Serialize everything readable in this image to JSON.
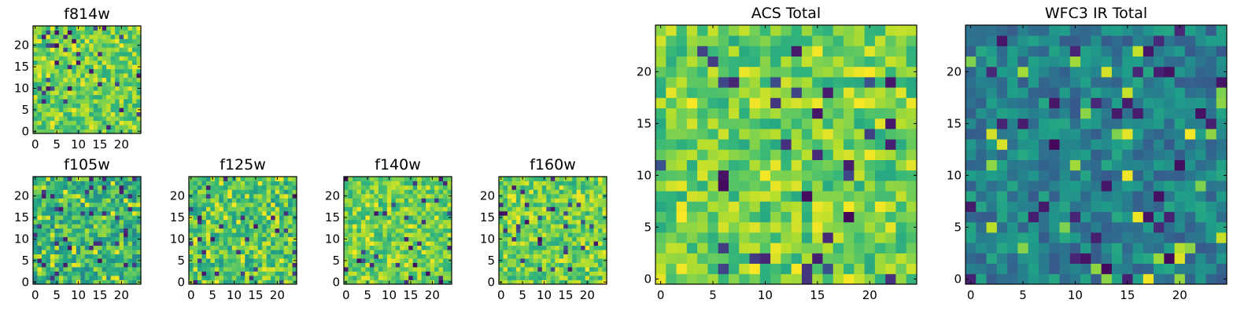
{
  "chart_data": [
    {
      "type": "heatmap",
      "title": "f814w",
      "grid_size": [
        25,
        25
      ],
      "xlim": [
        -0.5,
        24.5
      ],
      "ylim": [
        -0.5,
        24.5
      ],
      "xticks": [
        0,
        5,
        10,
        15,
        20
      ],
      "yticks": [
        0,
        5,
        10,
        15,
        20
      ],
      "colormap": "viridis",
      "tone": "bright",
      "seed": 11
    },
    {
      "type": "heatmap",
      "title": "f105w",
      "grid_size": [
        25,
        25
      ],
      "xlim": [
        -0.5,
        24.5
      ],
      "ylim": [
        -0.5,
        24.5
      ],
      "xticks": [
        0,
        5,
        10,
        15,
        20
      ],
      "yticks": [
        0,
        5,
        10,
        15,
        20
      ],
      "colormap": "viridis",
      "tone": "mid",
      "seed": 23
    },
    {
      "type": "heatmap",
      "title": "f125w",
      "grid_size": [
        25,
        25
      ],
      "xlim": [
        -0.5,
        24.5
      ],
      "ylim": [
        -0.5,
        24.5
      ],
      "xticks": [
        0,
        5,
        10,
        15,
        20
      ],
      "yticks": [
        0,
        5,
        10,
        15,
        20
      ],
      "colormap": "viridis",
      "tone": "mid-bright",
      "seed": 37
    },
    {
      "type": "heatmap",
      "title": "f140w",
      "grid_size": [
        25,
        25
      ],
      "xlim": [
        -0.5,
        24.5
      ],
      "ylim": [
        -0.5,
        24.5
      ],
      "xticks": [
        0,
        5,
        10,
        15,
        20
      ],
      "yticks": [
        0,
        5,
        10,
        15,
        20
      ],
      "colormap": "viridis",
      "tone": "bright",
      "seed": 41
    },
    {
      "type": "heatmap",
      "title": "f160w",
      "grid_size": [
        25,
        25
      ],
      "xlim": [
        -0.5,
        24.5
      ],
      "ylim": [
        -0.5,
        24.5
      ],
      "xticks": [
        0,
        5,
        10,
        15,
        20
      ],
      "yticks": [
        0,
        5,
        10,
        15,
        20
      ],
      "colormap": "viridis",
      "tone": "bright",
      "seed": 53
    },
    {
      "type": "heatmap",
      "title": "ACS Total",
      "grid_size": [
        25,
        25
      ],
      "xlim": [
        -0.5,
        24.5
      ],
      "ylim": [
        -0.5,
        24.5
      ],
      "xticks": [
        0,
        5,
        10,
        15,
        20
      ],
      "yticks": [
        0,
        5,
        10,
        15,
        20
      ],
      "colormap": "viridis",
      "tone": "bright",
      "seed": 67
    },
    {
      "type": "heatmap",
      "title": "WFC3 IR Total",
      "grid_size": [
        25,
        25
      ],
      "xlim": [
        -0.5,
        24.5
      ],
      "ylim": [
        -0.5,
        24.5
      ],
      "xticks": [
        0,
        5,
        10,
        15,
        20
      ],
      "yticks": [
        0,
        5,
        10,
        15,
        20
      ],
      "colormap": "viridis",
      "tone": "dark",
      "seed": 79
    }
  ]
}
